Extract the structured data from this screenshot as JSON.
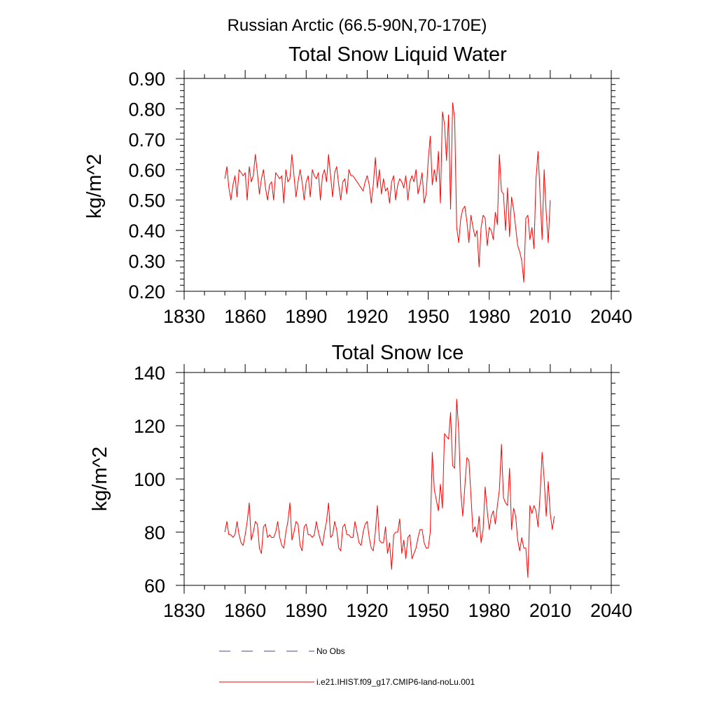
{
  "figure": {
    "suptitle": "Russian Arctic (66.5-90N,70-170E)",
    "series_color": "#ff0000",
    "obs_color": "#4a4a8c"
  },
  "legend": {
    "entries": [
      {
        "label": "No Obs",
        "style": "dashed",
        "color": "#4a4a8c"
      },
      {
        "label": "i.e21.IHIST.f09_g17.CMIP6-land-noLu.001",
        "style": "solid",
        "color": "#ff0000"
      }
    ]
  },
  "chart_data": [
    {
      "type": "line",
      "title": "Total Snow Liquid Water",
      "xlabel": "",
      "ylabel": "kg/m^2",
      "xlim": [
        1830,
        2040
      ],
      "ylim": [
        0.2,
        0.9
      ],
      "xticks": [
        1830,
        1860,
        1890,
        1920,
        1950,
        1980,
        2010,
        2040
      ],
      "xtick_labels": [
        "1830",
        "1860",
        "1890",
        "1920",
        "1950",
        "1980",
        "2010",
        "2040"
      ],
      "yticks": [
        0.2,
        0.3,
        0.4,
        0.5,
        0.6,
        0.7,
        0.8,
        0.9
      ],
      "ytick_labels": [
        "0.20",
        "0.30",
        "0.40",
        "0.50",
        "0.60",
        "0.70",
        "0.80",
        "0.90"
      ],
      "x_start": 1850,
      "series": [
        {
          "name": "i.e21.IHIST.f09_g17.CMIP6-land-noLu.001",
          "color": "#ff0000",
          "values": [
            0.57,
            0.61,
            0.54,
            0.5,
            0.55,
            0.58,
            0.51,
            0.6,
            0.59,
            0.58,
            0.59,
            0.5,
            0.61,
            0.56,
            0.58,
            0.65,
            0.59,
            0.52,
            0.57,
            0.6,
            0.54,
            0.5,
            0.55,
            0.56,
            0.5,
            0.59,
            0.58,
            0.57,
            0.58,
            0.49,
            0.6,
            0.56,
            0.57,
            0.65,
            0.58,
            0.51,
            0.56,
            0.6,
            0.56,
            0.5,
            0.56,
            0.58,
            0.51,
            0.6,
            0.58,
            0.57,
            0.59,
            0.5,
            0.58,
            0.6,
            0.56,
            0.65,
            0.58,
            0.51,
            0.59,
            0.61,
            0.55,
            0.5,
            0.56,
            0.57,
            0.52,
            0.6,
            0.58,
            0.58,
            0.57,
            0.56,
            0.55,
            0.54,
            0.53,
            0.56,
            0.58,
            0.55,
            0.49,
            0.55,
            0.64,
            0.54,
            0.6,
            0.52,
            0.57,
            0.53,
            0.54,
            0.49,
            0.56,
            0.58,
            0.5,
            0.55,
            0.57,
            0.56,
            0.54,
            0.58,
            0.5,
            0.56,
            0.58,
            0.56,
            0.6,
            0.52,
            0.55,
            0.59,
            0.49,
            0.52,
            0.63,
            0.71,
            0.55,
            0.6,
            0.56,
            0.66,
            0.49,
            0.79,
            0.75,
            0.63,
            0.78,
            0.47,
            0.82,
            0.77,
            0.41,
            0.36,
            0.44,
            0.47,
            0.48,
            0.43,
            0.36,
            0.45,
            0.41,
            0.38,
            0.4,
            0.28,
            0.41,
            0.45,
            0.44,
            0.35,
            0.41,
            0.4,
            0.37,
            0.46,
            0.42,
            0.65,
            0.53,
            0.52,
            0.4,
            0.54,
            0.38,
            0.51,
            0.47,
            0.41,
            0.35,
            0.33,
            0.3,
            0.23,
            0.44,
            0.45,
            0.37,
            0.41,
            0.34,
            0.57,
            0.66,
            0.52,
            0.37,
            0.6,
            0.46,
            0.36,
            0.5
          ]
        }
      ]
    },
    {
      "type": "line",
      "title": "Total Snow Ice",
      "xlabel": "",
      "ylabel": "kg/m^2",
      "xlim": [
        1830,
        2040
      ],
      "ylim": [
        60,
        140
      ],
      "xticks": [
        1830,
        1860,
        1890,
        1920,
        1950,
        1980,
        2010,
        2040
      ],
      "xtick_labels": [
        "1830",
        "1860",
        "1890",
        "1920",
        "1950",
        "1980",
        "2010",
        "2040"
      ],
      "yticks": [
        60,
        80,
        100,
        120,
        140
      ],
      "ytick_labels": [
        "60",
        "80",
        "100",
        "120",
        "140"
      ],
      "x_start": 1850,
      "series": [
        {
          "name": "i.e21.IHIST.f09_g17.CMIP6-land-noLu.001",
          "color": "#ff0000",
          "values": [
            80,
            84,
            79,
            79,
            78,
            79,
            84,
            79,
            76,
            75,
            79,
            84,
            91,
            77,
            80,
            84,
            83,
            74,
            72,
            82,
            83,
            78,
            79,
            78,
            78,
            80,
            84,
            78,
            75,
            74,
            80,
            84,
            91,
            77,
            80,
            84,
            83,
            75,
            73,
            82,
            83,
            79,
            79,
            78,
            79,
            84,
            80,
            77,
            75,
            80,
            84,
            91,
            78,
            79,
            84,
            81,
            74,
            73,
            82,
            83,
            79,
            79,
            78,
            78,
            84,
            80,
            76,
            75,
            80,
            83,
            84,
            78,
            74,
            73,
            80,
            90,
            77,
            76,
            76,
            82,
            72,
            76,
            66,
            79,
            80,
            80,
            85,
            72,
            77,
            70,
            78,
            79,
            70,
            72,
            74,
            78,
            81,
            81,
            76,
            74,
            74,
            80,
            110,
            96,
            92,
            88,
            98,
            89,
            117,
            116,
            115,
            125,
            105,
            104,
            130,
            118,
            95,
            86,
            97,
            108,
            107,
            94,
            80,
            82,
            78,
            86,
            76,
            81,
            97,
            88,
            81,
            86,
            88,
            83,
            90,
            96,
            113,
            93,
            91,
            90,
            104,
            81,
            89,
            86,
            77,
            73,
            78,
            74,
            74,
            63,
            90,
            87,
            90,
            88,
            82,
            94,
            110,
            100,
            86,
            99,
            87,
            81,
            86
          ]
        }
      ]
    }
  ]
}
